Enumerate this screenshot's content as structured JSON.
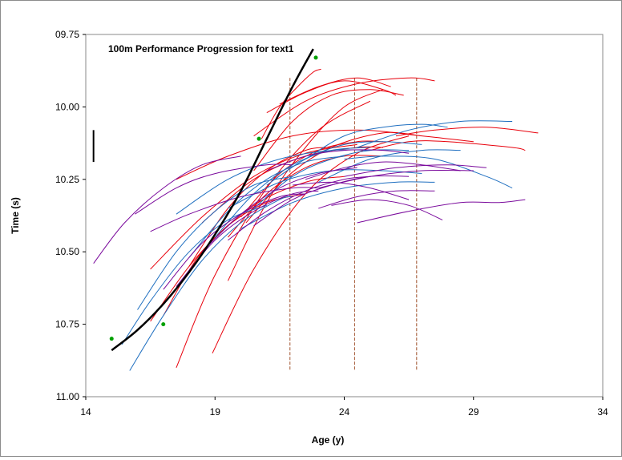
{
  "chart_data": {
    "type": "line",
    "title": "100m Performance Progression for  text1",
    "xlabel": "Age (y)",
    "ylabel": "Time (s)",
    "xlim": [
      14,
      34
    ],
    "ylim": [
      11.0,
      9.75
    ],
    "y_reversed": true,
    "x_ticks": [
      "14",
      "19",
      "24",
      "29",
      "34"
    ],
    "y_ticks": [
      "09.75",
      "10.00",
      "10.25",
      "10.50",
      "10.75",
      "11.00"
    ],
    "y_tick_values": [
      9.75,
      10.0,
      10.25,
      10.5,
      10.75,
      11.0
    ],
    "x_tick_values": [
      14,
      19,
      24,
      29,
      34
    ],
    "grid": false,
    "legend": "none",
    "colors": {
      "red": "#e8000b",
      "blue": "#1f6fc0",
      "purple": "#7a0a9c",
      "black": "#000000",
      "green": "#00a000",
      "dash": "#a0522d"
    },
    "vertical_dashed_lines": [
      {
        "x": 21.9,
        "y_from": 9.9,
        "y_to": 10.91
      },
      {
        "x": 24.4,
        "y_from": 9.9,
        "y_to": 10.91
      },
      {
        "x": 26.8,
        "y_from": 9.9,
        "y_to": 10.91
      }
    ],
    "error_bar": {
      "x": 14.3,
      "y_low": 10.08,
      "y_high": 10.19
    },
    "fit_curve": {
      "name": "",
      "color": "#000000",
      "points": [
        [
          15.0,
          10.84
        ],
        [
          16.0,
          10.77
        ],
        [
          17.0,
          10.68
        ],
        [
          18.0,
          10.57
        ],
        [
          19.0,
          10.44
        ],
        [
          20.0,
          10.29
        ],
        [
          21.0,
          10.11
        ],
        [
          22.0,
          9.93
        ],
        [
          22.8,
          9.8
        ]
      ]
    },
    "observed_points": [
      [
        15.0,
        10.8
      ],
      [
        17.0,
        10.75
      ],
      [
        20.7,
        10.11
      ],
      [
        22.9,
        9.83
      ]
    ],
    "curves": [
      {
        "color": "red",
        "points": [
          [
            16.5,
            10.56
          ],
          [
            18.5,
            10.38
          ],
          [
            20.5,
            10.24
          ],
          [
            22.5,
            10.16
          ],
          [
            24.5,
            10.13
          ]
        ]
      },
      {
        "color": "red",
        "points": [
          [
            17.5,
            10.9
          ],
          [
            19.0,
            10.58
          ],
          [
            21.0,
            10.28
          ],
          [
            23.0,
            10.08
          ],
          [
            25.0,
            9.98
          ]
        ]
      },
      {
        "color": "red",
        "points": [
          [
            18.9,
            10.85
          ],
          [
            20.5,
            10.56
          ],
          [
            22.5,
            10.3
          ],
          [
            24.5,
            10.16
          ],
          [
            26.5,
            10.1
          ]
        ]
      },
      {
        "color": "red",
        "points": [
          [
            19.5,
            10.6
          ],
          [
            21.0,
            10.33
          ],
          [
            22.5,
            10.14
          ],
          [
            24.0,
            10.0
          ],
          [
            25.5,
            9.94
          ]
        ]
      },
      {
        "color": "red",
        "points": [
          [
            20.5,
            10.22
          ],
          [
            22.0,
            10.05
          ],
          [
            23.5,
            9.96
          ],
          [
            25.0,
            9.94
          ],
          [
            26.3,
            9.96
          ]
        ]
      },
      {
        "color": "red",
        "points": [
          [
            20.5,
            10.1
          ],
          [
            22.5,
            9.98
          ],
          [
            24.5,
            9.92
          ],
          [
            26.5,
            9.9
          ],
          [
            27.5,
            9.91
          ]
        ]
      },
      {
        "color": "red",
        "points": [
          [
            20.8,
            10.11
          ],
          [
            21.5,
            10.0
          ],
          [
            22.2,
            9.93
          ],
          [
            22.8,
            9.88
          ],
          [
            23.1,
            9.87
          ]
        ]
      },
      {
        "color": "red",
        "points": [
          [
            21.0,
            10.02
          ],
          [
            22.5,
            9.95
          ],
          [
            24.0,
            9.91
          ],
          [
            25.5,
            9.94
          ],
          [
            26.0,
            9.96
          ]
        ]
      },
      {
        "color": "red",
        "points": [
          [
            21.5,
            9.99
          ],
          [
            23.0,
            9.93
          ],
          [
            24.5,
            9.9
          ],
          [
            25.8,
            9.93
          ]
        ]
      },
      {
        "color": "red",
        "points": [
          [
            20.2,
            10.4
          ],
          [
            21.8,
            10.24
          ],
          [
            23.5,
            10.14
          ],
          [
            25.5,
            10.09
          ],
          [
            27.0,
            10.1
          ]
        ]
      },
      {
        "color": "red",
        "points": [
          [
            17.5,
            10.25
          ],
          [
            19.5,
            10.17
          ],
          [
            22.0,
            10.1
          ],
          [
            24.5,
            10.08
          ],
          [
            27.0,
            10.1
          ],
          [
            29.0,
            10.12
          ]
        ]
      },
      {
        "color": "red",
        "points": [
          [
            17.0,
            10.72
          ],
          [
            18.5,
            10.5
          ],
          [
            20.5,
            10.34
          ],
          [
            22.5,
            10.26
          ],
          [
            24.0,
            10.24
          ]
        ]
      },
      {
        "color": "red",
        "points": [
          [
            18.5,
            10.4
          ],
          [
            20.5,
            10.25
          ],
          [
            22.5,
            10.17
          ],
          [
            24.5,
            10.14
          ],
          [
            25.5,
            10.14
          ]
        ]
      },
      {
        "color": "red",
        "points": [
          [
            19.5,
            10.45
          ],
          [
            21.0,
            10.3
          ],
          [
            22.5,
            10.21
          ],
          [
            24.0,
            10.17
          ],
          [
            25.5,
            10.17
          ]
        ]
      },
      {
        "color": "red",
        "points": [
          [
            18.0,
            10.55
          ],
          [
            19.5,
            10.35
          ],
          [
            21.0,
            10.22
          ],
          [
            22.5,
            10.15
          ],
          [
            23.5,
            10.14
          ]
        ]
      },
      {
        "color": "red",
        "points": [
          [
            20.0,
            10.38
          ],
          [
            21.5,
            10.23
          ],
          [
            23.0,
            10.15
          ],
          [
            24.5,
            10.12
          ],
          [
            25.5,
            10.12
          ]
        ]
      },
      {
        "color": "red",
        "points": [
          [
            26.0,
            10.1
          ],
          [
            27.5,
            10.08
          ],
          [
            29.5,
            10.07
          ],
          [
            31.5,
            10.09
          ]
        ]
      },
      {
        "color": "red",
        "points": [
          [
            25.0,
            10.15
          ],
          [
            26.5,
            10.12
          ],
          [
            28.0,
            10.12
          ],
          [
            30.5,
            10.14
          ],
          [
            31.0,
            10.15
          ]
        ]
      },
      {
        "color": "red",
        "points": [
          [
            16.5,
            10.74
          ],
          [
            18.0,
            10.55
          ],
          [
            19.5,
            10.41
          ],
          [
            21.0,
            10.33
          ],
          [
            22.5,
            10.3
          ]
        ]
      },
      {
        "color": "blue",
        "points": [
          [
            15.7,
            10.91
          ],
          [
            17.0,
            10.72
          ],
          [
            18.5,
            10.53
          ],
          [
            20.0,
            10.4
          ],
          [
            21.5,
            10.32
          ],
          [
            22.0,
            10.31
          ]
        ]
      },
      {
        "color": "blue",
        "points": [
          [
            15.4,
            10.82
          ],
          [
            16.5,
            10.67
          ],
          [
            18.0,
            10.5
          ],
          [
            19.5,
            10.39
          ],
          [
            21.0,
            10.34
          ]
        ]
      },
      {
        "color": "blue",
        "points": [
          [
            16.0,
            10.7
          ],
          [
            17.5,
            10.5
          ],
          [
            19.0,
            10.36
          ],
          [
            20.5,
            10.27
          ],
          [
            22.0,
            10.24
          ]
        ]
      },
      {
        "color": "blue",
        "points": [
          [
            17.5,
            10.37
          ],
          [
            19.5,
            10.25
          ],
          [
            21.5,
            10.18
          ],
          [
            23.5,
            10.15
          ],
          [
            25.0,
            10.15
          ]
        ]
      },
      {
        "color": "blue",
        "points": [
          [
            18.0,
            10.52
          ],
          [
            19.5,
            10.36
          ],
          [
            21.0,
            10.25
          ],
          [
            22.5,
            10.19
          ],
          [
            24.0,
            10.17
          ]
        ]
      },
      {
        "color": "blue",
        "points": [
          [
            19.0,
            10.45
          ],
          [
            20.5,
            10.3
          ],
          [
            22.0,
            10.2
          ],
          [
            23.5,
            10.15
          ],
          [
            25.0,
            10.14
          ]
        ]
      },
      {
        "color": "blue",
        "points": [
          [
            20.5,
            10.35
          ],
          [
            22.0,
            10.24
          ],
          [
            23.5,
            10.18
          ],
          [
            25.0,
            10.15
          ],
          [
            26.5,
            10.15
          ]
        ]
      },
      {
        "color": "blue",
        "points": [
          [
            21.0,
            10.27
          ],
          [
            22.5,
            10.18
          ],
          [
            24.0,
            10.13
          ],
          [
            25.5,
            10.12
          ],
          [
            27.0,
            10.13
          ]
        ]
      },
      {
        "color": "blue",
        "points": [
          [
            22.5,
            10.18
          ],
          [
            24.0,
            10.1
          ],
          [
            25.5,
            10.07
          ],
          [
            27.0,
            10.06
          ],
          [
            28.0,
            10.07
          ]
        ]
      },
      {
        "color": "blue",
        "points": [
          [
            24.5,
            10.14
          ],
          [
            26.5,
            10.08
          ],
          [
            28.5,
            10.05
          ],
          [
            30.5,
            10.05
          ]
        ]
      },
      {
        "color": "blue",
        "points": [
          [
            23.0,
            10.26
          ],
          [
            25.0,
            10.18
          ],
          [
            27.0,
            10.15
          ],
          [
            28.5,
            10.15
          ]
        ]
      },
      {
        "color": "blue",
        "points": [
          [
            24.0,
            10.18
          ],
          [
            25.5,
            10.17
          ],
          [
            27.5,
            10.18
          ],
          [
            29.5,
            10.24
          ],
          [
            30.5,
            10.28
          ]
        ]
      },
      {
        "color": "blue",
        "points": [
          [
            19.5,
            10.35
          ],
          [
            21.5,
            10.26
          ],
          [
            23.5,
            10.22
          ],
          [
            25.5,
            10.22
          ],
          [
            27.0,
            10.23
          ]
        ]
      },
      {
        "color": "blue",
        "points": [
          [
            20.0,
            10.42
          ],
          [
            22.0,
            10.33
          ],
          [
            24.0,
            10.28
          ],
          [
            26.0,
            10.26
          ],
          [
            27.5,
            10.26
          ]
        ]
      },
      {
        "color": "purple",
        "points": [
          [
            14.3,
            10.54
          ],
          [
            15.5,
            10.4
          ],
          [
            17.0,
            10.28
          ],
          [
            18.5,
            10.2
          ],
          [
            20.0,
            10.17
          ]
        ]
      },
      {
        "color": "purple",
        "points": [
          [
            15.9,
            10.37
          ],
          [
            17.5,
            10.28
          ],
          [
            19.0,
            10.23
          ],
          [
            21.0,
            10.2
          ],
          [
            22.0,
            10.2
          ]
        ]
      },
      {
        "color": "purple",
        "points": [
          [
            16.5,
            10.43
          ],
          [
            18.0,
            10.37
          ],
          [
            20.0,
            10.31
          ],
          [
            22.0,
            10.28
          ],
          [
            23.0,
            10.28
          ]
        ]
      },
      {
        "color": "purple",
        "points": [
          [
            17.0,
            10.63
          ],
          [
            18.5,
            10.47
          ],
          [
            20.0,
            10.37
          ],
          [
            21.5,
            10.31
          ],
          [
            22.5,
            10.3
          ]
        ]
      },
      {
        "color": "purple",
        "points": [
          [
            17.5,
            10.62
          ],
          [
            19.0,
            10.46
          ],
          [
            20.5,
            10.36
          ],
          [
            22.0,
            10.3
          ],
          [
            23.0,
            10.29
          ]
        ]
      },
      {
        "color": "purple",
        "points": [
          [
            18.5,
            10.5
          ],
          [
            20.0,
            10.37
          ],
          [
            21.5,
            10.28
          ],
          [
            23.0,
            10.23
          ],
          [
            24.5,
            10.21
          ]
        ]
      },
      {
        "color": "purple",
        "points": [
          [
            19.5,
            10.46
          ],
          [
            21.0,
            10.36
          ],
          [
            22.5,
            10.29
          ],
          [
            24.0,
            10.25
          ],
          [
            25.0,
            10.24
          ]
        ]
      },
      {
        "color": "purple",
        "points": [
          [
            20.5,
            10.41
          ],
          [
            22.0,
            10.32
          ],
          [
            23.5,
            10.27
          ],
          [
            25.0,
            10.24
          ],
          [
            26.5,
            10.24
          ]
        ]
      },
      {
        "color": "purple",
        "points": [
          [
            21.0,
            10.22
          ],
          [
            22.5,
            10.17
          ],
          [
            24.0,
            10.15
          ],
          [
            25.5,
            10.15
          ],
          [
            26.5,
            10.16
          ]
        ]
      },
      {
        "color": "purple",
        "points": [
          [
            22.5,
            10.25
          ],
          [
            24.0,
            10.21
          ],
          [
            25.5,
            10.19
          ],
          [
            27.0,
            10.2
          ],
          [
            28.5,
            10.22
          ]
        ]
      },
      {
        "color": "purple",
        "points": [
          [
            23.0,
            10.28
          ],
          [
            25.0,
            10.24
          ],
          [
            27.0,
            10.22
          ],
          [
            29.0,
            10.22
          ]
        ]
      },
      {
        "color": "purple",
        "points": [
          [
            23.5,
            10.34
          ],
          [
            25.0,
            10.32
          ],
          [
            26.5,
            10.34
          ],
          [
            27.8,
            10.39
          ]
        ]
      },
      {
        "color": "purple",
        "points": [
          [
            22.0,
            10.27
          ],
          [
            23.5,
            10.26
          ],
          [
            25.0,
            10.28
          ],
          [
            26.5,
            10.32
          ]
        ]
      },
      {
        "color": "purple",
        "points": [
          [
            24.5,
            10.4
          ],
          [
            26.5,
            10.36
          ],
          [
            28.5,
            10.33
          ],
          [
            30.0,
            10.33
          ],
          [
            31.0,
            10.32
          ]
        ]
      },
      {
        "color": "purple",
        "points": [
          [
            23.0,
            10.35
          ],
          [
            24.5,
            10.31
          ],
          [
            26.0,
            10.29
          ],
          [
            27.5,
            10.29
          ]
        ]
      },
      {
        "color": "purple",
        "points": [
          [
            24.0,
            10.24
          ],
          [
            26.0,
            10.21
          ],
          [
            28.0,
            10.2
          ],
          [
            29.5,
            10.21
          ]
        ]
      }
    ]
  }
}
